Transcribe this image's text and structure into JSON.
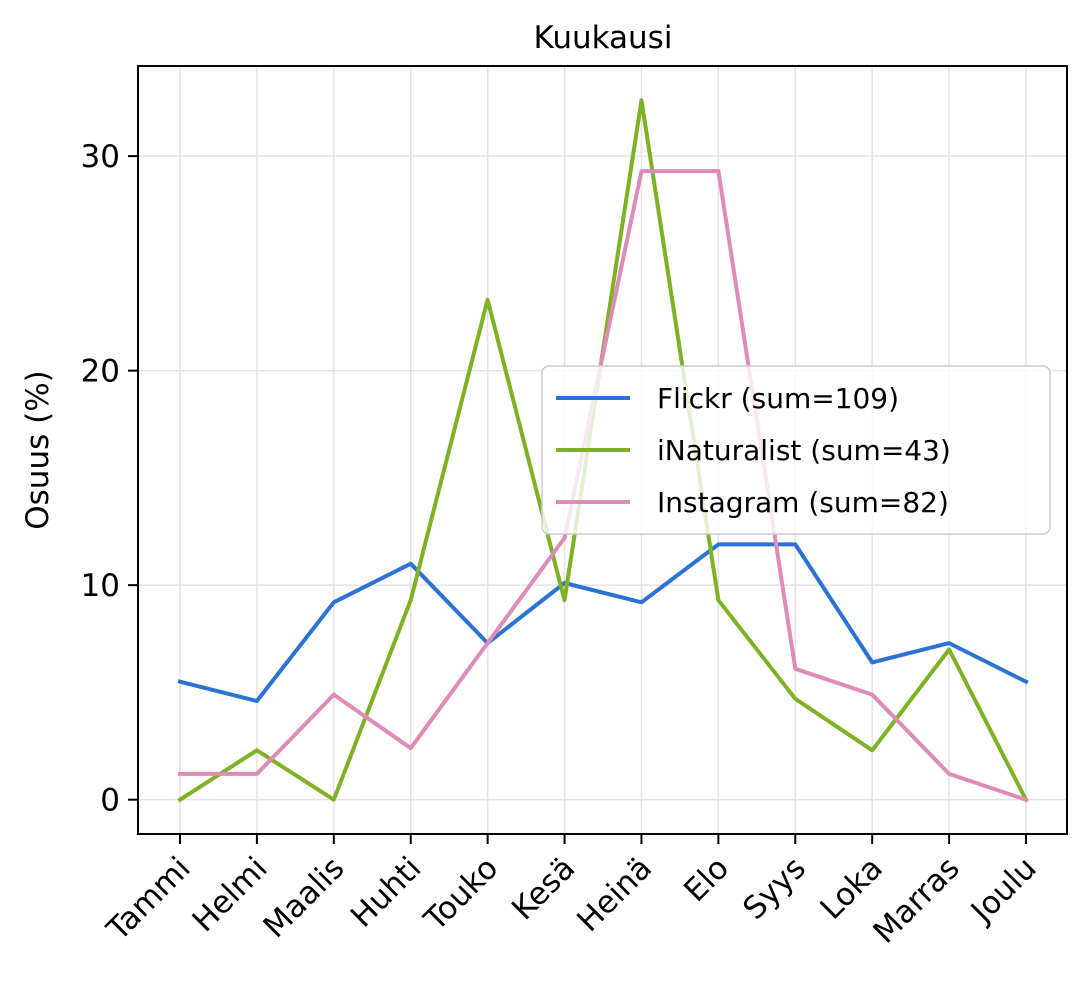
{
  "chart_data": {
    "type": "line",
    "title": "Kuukausi",
    "xlabel": "",
    "ylabel": "Osuus (%)",
    "categories": [
      "Tammi",
      "Helmi",
      "Maalis",
      "Huhti",
      "Touko",
      "Kesä",
      "Heinä",
      "Elo",
      "Syys",
      "Loka",
      "Marras",
      "Joulu"
    ],
    "ylim": [
      -1.6,
      34.2
    ],
    "yticks": [
      "0",
      "10",
      "20",
      "30"
    ],
    "grid": true,
    "legend_position": "center-right",
    "series": [
      {
        "name": "Flickr (sum=109)",
        "color": "#2a73d4",
        "values": [
          5.5,
          4.6,
          9.2,
          11.0,
          7.3,
          10.1,
          9.2,
          11.9,
          11.9,
          6.4,
          7.3,
          5.5
        ]
      },
      {
        "name": "iNaturalist (sum=43)",
        "color": "#7db225",
        "values": [
          0.0,
          2.3,
          0.0,
          9.3,
          23.3,
          9.3,
          32.6,
          9.3,
          4.7,
          2.3,
          7.0,
          0.0
        ]
      },
      {
        "name": "Instagram (sum=82)",
        "color": "#de8bb8",
        "values": [
          1.2,
          1.2,
          4.9,
          2.4,
          7.3,
          12.2,
          29.3,
          29.3,
          6.1,
          4.9,
          1.2,
          0.0
        ]
      }
    ]
  }
}
